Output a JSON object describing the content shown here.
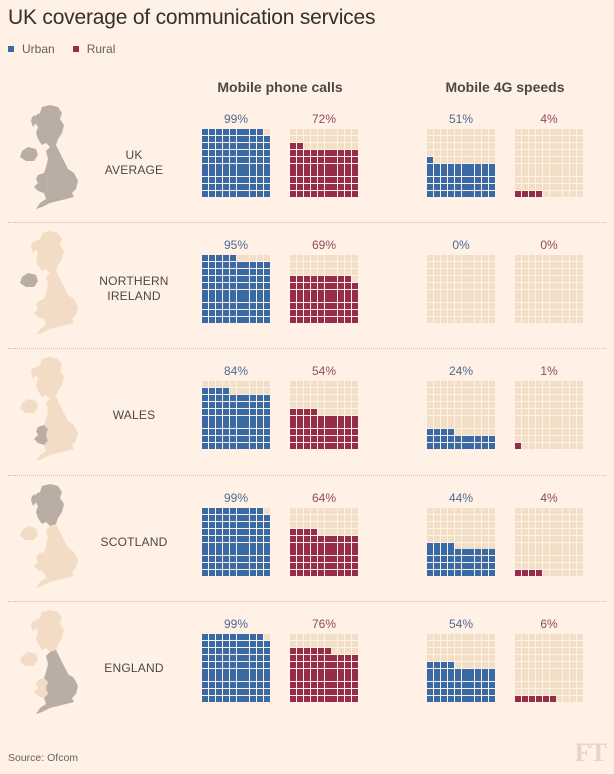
{
  "title": "UK coverage of communication services",
  "source": "Source: Ofcom",
  "logo": "FT",
  "colors": {
    "urban": "#3a6aa5",
    "rural": "#952c4a",
    "empty": "#f2dfc8",
    "map_highlight": "#b9aea3",
    "map_base": "#f2dcc5",
    "background": "#fff1e5"
  },
  "chart_data": {
    "type": "waffle",
    "title": "UK coverage of communication services",
    "grid": "10x10",
    "legend": [
      {
        "name": "Urban",
        "color": "#3a6aa5"
      },
      {
        "name": "Rural",
        "color": "#952c4a"
      }
    ],
    "legend_position": "top-left",
    "metrics": [
      "Mobile phone calls",
      "Mobile 4G speeds"
    ],
    "regions": [
      {
        "name": "UK AVERAGE",
        "label_lines": [
          "UK",
          "AVERAGE"
        ],
        "highlight": "all",
        "values": {
          "calls": {
            "urban": 99,
            "rural": 72
          },
          "4g": {
            "urban": 51,
            "rural": 4
          }
        }
      },
      {
        "name": "NORTHERN IRELAND",
        "label_lines": [
          "NORTHERN",
          "IRELAND"
        ],
        "highlight": "ni",
        "values": {
          "calls": {
            "urban": 95,
            "rural": 69
          },
          "4g": {
            "urban": 0,
            "rural": 0
          }
        }
      },
      {
        "name": "WALES",
        "label_lines": [
          "WALES"
        ],
        "highlight": "wales",
        "values": {
          "calls": {
            "urban": 84,
            "rural": 54
          },
          "4g": {
            "urban": 24,
            "rural": 1
          }
        }
      },
      {
        "name": "SCOTLAND",
        "label_lines": [
          "SCOTLAND"
        ],
        "highlight": "scotland",
        "values": {
          "calls": {
            "urban": 99,
            "rural": 64
          },
          "4g": {
            "urban": 44,
            "rural": 4
          }
        }
      },
      {
        "name": "ENGLAND",
        "label_lines": [
          "ENGLAND"
        ],
        "highlight": "england",
        "values": {
          "calls": {
            "urban": 99,
            "rural": 76
          },
          "4g": {
            "urban": 54,
            "rural": 6
          }
        }
      }
    ],
    "unit": "%"
  },
  "legend": {
    "urban": "Urban",
    "rural": "Rural"
  },
  "headers": {
    "calls": "Mobile phone calls",
    "fourg": "Mobile 4G speeds"
  }
}
